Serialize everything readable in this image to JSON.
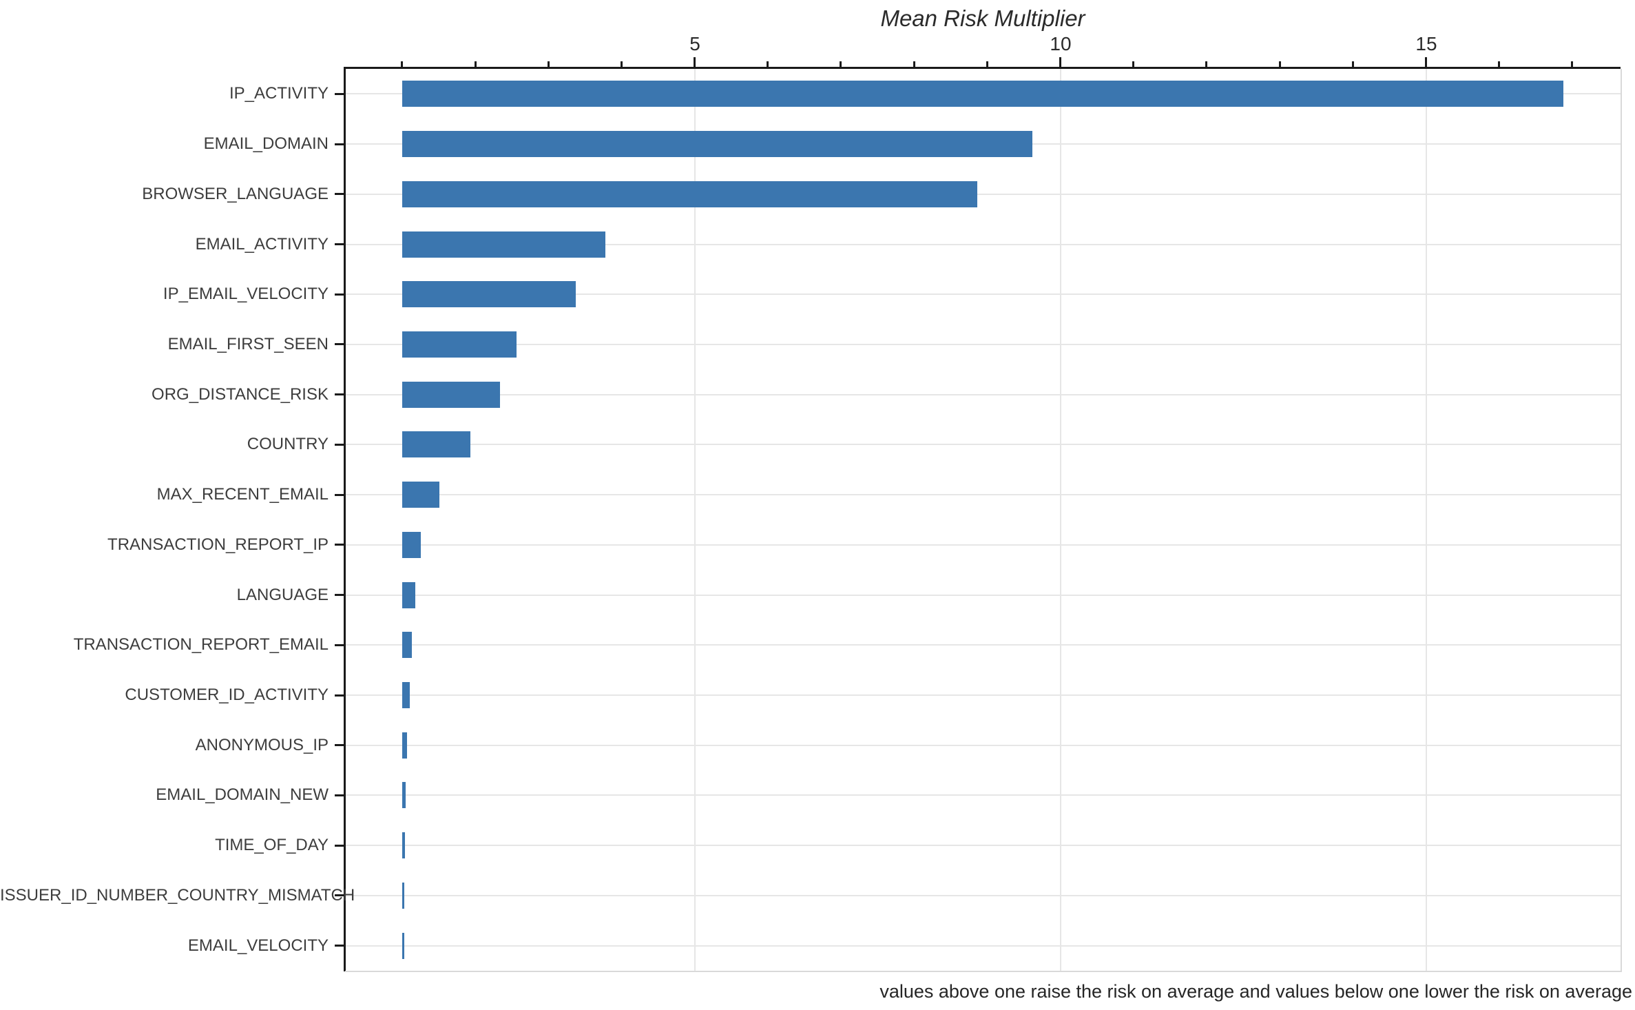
{
  "chart_data": {
    "type": "bar",
    "orientation": "horizontal",
    "title": "Mean Risk Multiplier",
    "caption": "values above one raise the risk on average and values below one lower the risk on average",
    "categories": [
      "IP_ACTIVITY",
      "EMAIL_DOMAIN",
      "BROWSER_LANGUAGE",
      "EMAIL_ACTIVITY",
      "IP_EMAIL_VELOCITY",
      "EMAIL_FIRST_SEEN",
      "ORG_DISTANCE_RISK",
      "COUNTRY",
      "MAX_RECENT_EMAIL",
      "TRANSACTION_REPORT_IP",
      "LANGUAGE",
      "TRANSACTION_REPORT_EMAIL",
      "CUSTOMER_ID_ACTIVITY",
      "ANONYMOUS_IP",
      "EMAIL_DOMAIN_NEW",
      "TIME_OF_DAY",
      "ISSUER_ID_NUMBER_COUNTRY_MISMATCH",
      "EMAIL_VELOCITY"
    ],
    "values": [
      16.88,
      9.62,
      8.86,
      3.78,
      3.37,
      2.56,
      2.34,
      1.93,
      1.51,
      1.25,
      1.18,
      1.13,
      1.1,
      1.07,
      1.045,
      1.038,
      1.032,
      1.025
    ],
    "bar_base": 1,
    "xlabel": "Mean Risk Multiplier",
    "ylabel": "",
    "xlim": [
      0.22,
      17.66
    ],
    "x_major_ticks": [
      5,
      10,
      15
    ],
    "x_minor_tick_step": 1,
    "grid": true,
    "legend": "none",
    "colors": {
      "bar": "#3B76AF",
      "grid": "#e6e6e6",
      "spine": "#1a1a1a",
      "light_edge": "#d9d9d9",
      "axis_text": "#2b2b2b",
      "category_text": "#3d3d3d",
      "caption_text": "#262626"
    }
  }
}
